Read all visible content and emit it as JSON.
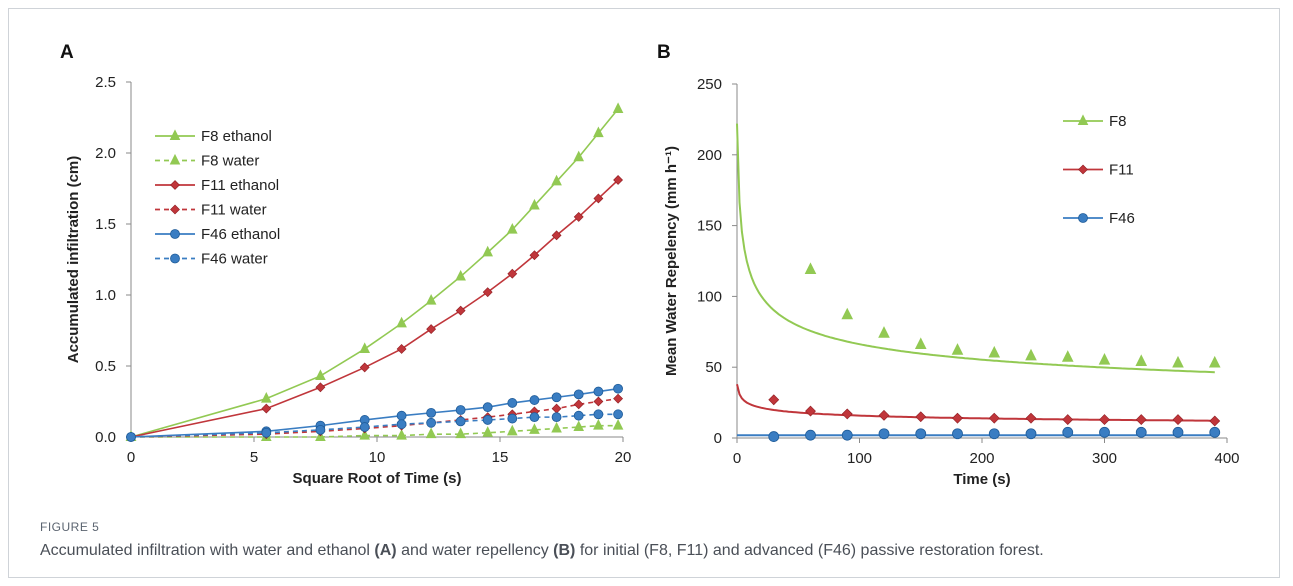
{
  "figure": {
    "label": "FIGURE 5",
    "caption_parts": [
      {
        "text": "Accumulated infiltration with water and ethanol ",
        "bold": false
      },
      {
        "text": "(A)",
        "bold": true
      },
      {
        "text": " and water repellency ",
        "bold": false
      },
      {
        "text": "(B)",
        "bold": true
      },
      {
        "text": " for initial (F8, F11) and advanced (F46) passive restoration forest.",
        "bold": false
      }
    ]
  },
  "chart_data": [
    {
      "panel": "A",
      "type": "line",
      "xlabel": "Square Root of Time (s)",
      "ylabel": "Accumulated infiltration (cm)",
      "xlim": [
        0,
        20
      ],
      "ylim": [
        0,
        2.5
      ],
      "xticks": [
        "0",
        "5",
        "10",
        "15",
        "20"
      ],
      "yticks": [
        "0.0",
        "0.5",
        "1.0",
        "1.5",
        "2.0",
        "2.5"
      ],
      "x": [
        0,
        5.5,
        7.7,
        9.5,
        11.0,
        12.2,
        13.4,
        14.5,
        15.5,
        16.4,
        17.3,
        18.2,
        19.0,
        19.8
      ],
      "legend_position": "top-left",
      "series": [
        {
          "name": "F8 ethanol",
          "color": "#92c953",
          "dash": false,
          "marker": "triangle",
          "values": [
            0,
            0.27,
            0.43,
            0.62,
            0.8,
            0.96,
            1.13,
            1.3,
            1.46,
            1.63,
            1.8,
            1.97,
            2.14,
            2.31
          ]
        },
        {
          "name": "F8 water",
          "color": "#92c953",
          "dash": true,
          "marker": "triangle",
          "values": [
            0,
            0.0,
            0.0,
            0.01,
            0.01,
            0.02,
            0.02,
            0.03,
            0.04,
            0.05,
            0.06,
            0.07,
            0.08,
            0.08
          ]
        },
        {
          "name": "F11 ethanol",
          "color": "#c0363b",
          "dash": false,
          "marker": "diamond",
          "values": [
            0,
            0.2,
            0.35,
            0.49,
            0.62,
            0.76,
            0.89,
            1.02,
            1.15,
            1.28,
            1.42,
            1.55,
            1.68,
            1.81
          ]
        },
        {
          "name": "F11 water",
          "color": "#c0363b",
          "dash": true,
          "marker": "diamond",
          "values": [
            0,
            0.02,
            0.04,
            0.06,
            0.08,
            0.1,
            0.12,
            0.14,
            0.16,
            0.18,
            0.2,
            0.23,
            0.25,
            0.27
          ]
        },
        {
          "name": "F46 ethanol",
          "color": "#3a7dc2",
          "dash": false,
          "marker": "circle",
          "values": [
            0,
            0.04,
            0.08,
            0.12,
            0.15,
            0.17,
            0.19,
            0.21,
            0.24,
            0.26,
            0.28,
            0.3,
            0.32,
            0.34
          ]
        },
        {
          "name": "F46 water",
          "color": "#3a7dc2",
          "dash": true,
          "marker": "circle",
          "values": [
            0,
            0.03,
            0.05,
            0.07,
            0.09,
            0.1,
            0.11,
            0.12,
            0.13,
            0.14,
            0.14,
            0.15,
            0.16,
            0.16
          ]
        }
      ]
    },
    {
      "panel": "B",
      "type": "scatter",
      "xlabel": "Time (s)",
      "ylabel": "Mean Water Repelency (mm h⁻¹)",
      "xlim": [
        0,
        400
      ],
      "ylim": [
        0,
        250
      ],
      "xticks": [
        "0",
        "100",
        "200",
        "300",
        "400"
      ],
      "yticks": [
        "0",
        "50",
        "100",
        "150",
        "200",
        "250"
      ],
      "x": [
        30,
        60,
        90,
        120,
        150,
        180,
        210,
        240,
        270,
        300,
        330,
        360,
        390
      ],
      "legend_position": "right",
      "series": [
        {
          "name": "F8",
          "color": "#92c953",
          "marker": "triangle",
          "values": [
            null,
            119,
            87,
            74,
            66,
            62,
            60,
            58,
            57,
            55,
            54,
            53,
            53
          ],
          "fit": {
            "a": 222,
            "t0": 1,
            "b": 0.262
          }
        },
        {
          "name": "F11",
          "color": "#c0363b",
          "marker": "diamond",
          "values": [
            27,
            19,
            17,
            16,
            15,
            14,
            14,
            14,
            13,
            13,
            13,
            13,
            12
          ],
          "fit": {
            "a": 38,
            "t0": 1,
            "b": 0.19
          }
        },
        {
          "name": "F46",
          "color": "#3a7dc2",
          "marker": "circle",
          "values": [
            1,
            2,
            2,
            3,
            3,
            3,
            3,
            3,
            4,
            4,
            4,
            4,
            4
          ],
          "fit": {
            "a": 2,
            "t0": 1,
            "b": 0.0
          }
        }
      ]
    }
  ]
}
